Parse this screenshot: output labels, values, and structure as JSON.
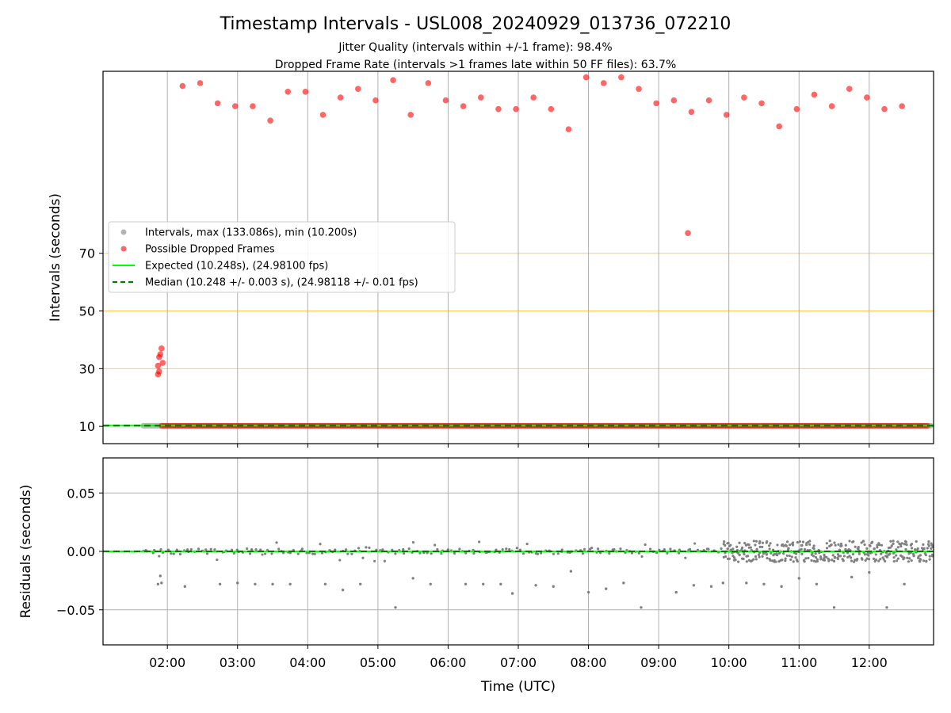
{
  "title": "Timestamp Intervals - USL008_20240929_013736_072210",
  "subtitle_1": "Jitter Quality (intervals within +/-1 frame): 98.4%",
  "subtitle_2": "Dropped Frame Rate (intervals >1 frames late within 50 FF files): 63.7%",
  "colors": {
    "intervals": "#808080",
    "dropped": "#ff0000",
    "expected": "#00ff00",
    "median": "#008000",
    "threshold": "#ffa500",
    "grid": "#b0b0b0",
    "residuals": "#808080"
  },
  "chart_data": [
    {
      "type": "scatter",
      "panel": "top",
      "ylabel": "Intervals (seconds)",
      "yticks": [
        10,
        30,
        50,
        70
      ],
      "ylim": [
        4,
        133.086
      ],
      "xlim": [
        "01:05",
        "12:55"
      ],
      "x_unit": "time of day (UTC)",
      "grid": "vertical",
      "legend_position": "center-left",
      "legend": [
        {
          "label": "Intervals, max (133.086s), min (10.200s)",
          "kind": "scatter",
          "color": "#808080"
        },
        {
          "label": "Possible Dropped Frames",
          "kind": "scatter",
          "color": "#ff0000"
        },
        {
          "label": "Expected (10.248s), (24.98100 fps)",
          "kind": "line",
          "color": "#00ff00"
        },
        {
          "label": "Median (10.248 +/- 0.003 s), (24.98118 +/- 0.01 fps)",
          "kind": "dashed",
          "color": "#008000"
        }
      ],
      "threshold_lines": [
        30,
        50,
        70
      ],
      "series": [
        {
          "name": "Intervals, max (133.086s), min (10.200s)",
          "kind": "band",
          "y": 10.2,
          "x_range": [
            "01:37",
            "12:55"
          ]
        },
        {
          "name": "Possible Dropped Frames",
          "kind": "band",
          "y": 10.2,
          "x_range": [
            "01:55",
            "12:50"
          ]
        },
        {
          "name": "Possible Dropped Frames",
          "kind": "points",
          "points": [
            [
              "01:52",
              28
            ],
            [
              "01:52",
              31
            ],
            [
              "01:53",
              29
            ],
            [
              "01:53",
              34
            ],
            [
              "01:54",
              35
            ],
            [
              "01:55",
              37
            ],
            [
              "01:56",
              32
            ],
            [
              "02:13",
              128
            ],
            [
              "02:28",
              129
            ],
            [
              "02:43",
              122
            ],
            [
              "02:58",
              121
            ],
            [
              "03:13",
              121
            ],
            [
              "03:28",
              116
            ],
            [
              "03:43",
              126
            ],
            [
              "03:58",
              126
            ],
            [
              "04:13",
              118
            ],
            [
              "04:28",
              124
            ],
            [
              "04:43",
              127
            ],
            [
              "04:58",
              123
            ],
            [
              "05:13",
              130
            ],
            [
              "05:28",
              118
            ],
            [
              "05:43",
              129
            ],
            [
              "05:58",
              123
            ],
            [
              "06:13",
              121
            ],
            [
              "06:28",
              124
            ],
            [
              "06:43",
              120
            ],
            [
              "06:58",
              120
            ],
            [
              "07:13",
              124
            ],
            [
              "07:28",
              120
            ],
            [
              "07:43",
              113
            ],
            [
              "07:58",
              131
            ],
            [
              "08:13",
              129
            ],
            [
              "08:28",
              131
            ],
            [
              "08:43",
              127
            ],
            [
              "08:58",
              122
            ],
            [
              "09:13",
              123
            ],
            [
              "09:28",
              119
            ],
            [
              "09:43",
              123
            ],
            [
              "09:58",
              118
            ],
            [
              "10:13",
              124
            ],
            [
              "10:28",
              122
            ],
            [
              "10:43",
              114
            ],
            [
              "10:58",
              120
            ],
            [
              "11:13",
              125
            ],
            [
              "11:28",
              121
            ],
            [
              "11:43",
              127
            ],
            [
              "11:58",
              124
            ],
            [
              "12:13",
              120
            ],
            [
              "12:28",
              121
            ],
            [
              "09:25",
              77
            ]
          ]
        },
        {
          "name": "Expected (10.248s), (24.98100 fps)",
          "kind": "hline",
          "y": 10.248
        },
        {
          "name": "Median (10.248 +/- 0.003 s), (24.98118 +/- 0.01 fps)",
          "kind": "hline-dashed",
          "y": 10.248
        }
      ]
    },
    {
      "type": "scatter",
      "panel": "bottom",
      "xlabel": "Time (UTC)",
      "ylabel": "Residuals (seconds)",
      "yticks": [
        0.05,
        0.0,
        -0.05
      ],
      "ytick_labels": [
        "0.05",
        "0.00",
        "−0.05"
      ],
      "ylim": [
        -0.08,
        0.08
      ],
      "xlim": [
        "01:05",
        "12:55"
      ],
      "xticks": [
        "02:00",
        "03:00",
        "04:00",
        "05:00",
        "06:00",
        "07:00",
        "08:00",
        "09:00",
        "10:00",
        "11:00",
        "12:00"
      ],
      "grid": "both",
      "series": [
        {
          "name": "Residuals",
          "kind": "cloud",
          "segments": [
            {
              "x_range": [
                "01:37",
                "09:55"
              ],
              "spread": 0.006
            },
            {
              "x_range": [
                "09:55",
                "12:55"
              ],
              "spread": 0.009
            }
          ],
          "points": [
            [
              "01:52",
              -0.028
            ],
            [
              "01:54",
              -0.021
            ],
            [
              "01:55",
              -0.027
            ],
            [
              "02:15",
              -0.03
            ],
            [
              "02:45",
              -0.028
            ],
            [
              "03:00",
              -0.027
            ],
            [
              "03:15",
              -0.028
            ],
            [
              "03:30",
              -0.028
            ],
            [
              "03:45",
              -0.028
            ],
            [
              "04:15",
              -0.028
            ],
            [
              "04:30",
              -0.033
            ],
            [
              "04:45",
              -0.028
            ],
            [
              "05:15",
              -0.048
            ],
            [
              "05:30",
              -0.023
            ],
            [
              "05:45",
              -0.028
            ],
            [
              "06:15",
              -0.028
            ],
            [
              "06:30",
              -0.028
            ],
            [
              "06:45",
              -0.028
            ],
            [
              "06:55",
              -0.036
            ],
            [
              "07:15",
              -0.029
            ],
            [
              "07:30",
              -0.03
            ],
            [
              "07:45",
              -0.017
            ],
            [
              "08:00",
              -0.035
            ],
            [
              "08:15",
              -0.032
            ],
            [
              "08:30",
              -0.027
            ],
            [
              "08:45",
              -0.048
            ],
            [
              "09:15",
              -0.035
            ],
            [
              "09:30",
              -0.029
            ],
            [
              "09:45",
              -0.03
            ],
            [
              "09:55",
              -0.027
            ],
            [
              "10:15",
              -0.027
            ],
            [
              "10:30",
              -0.028
            ],
            [
              "10:45",
              -0.03
            ],
            [
              "11:00",
              -0.023
            ],
            [
              "11:15",
              -0.028
            ],
            [
              "11:30",
              -0.048
            ],
            [
              "11:45",
              -0.022
            ],
            [
              "12:00",
              -0.018
            ],
            [
              "12:15",
              -0.048
            ],
            [
              "12:30",
              -0.028
            ]
          ]
        },
        {
          "name": "Expected",
          "kind": "hline",
          "y": 0
        },
        {
          "name": "Median",
          "kind": "hline-dashed",
          "y": 0
        }
      ]
    }
  ]
}
